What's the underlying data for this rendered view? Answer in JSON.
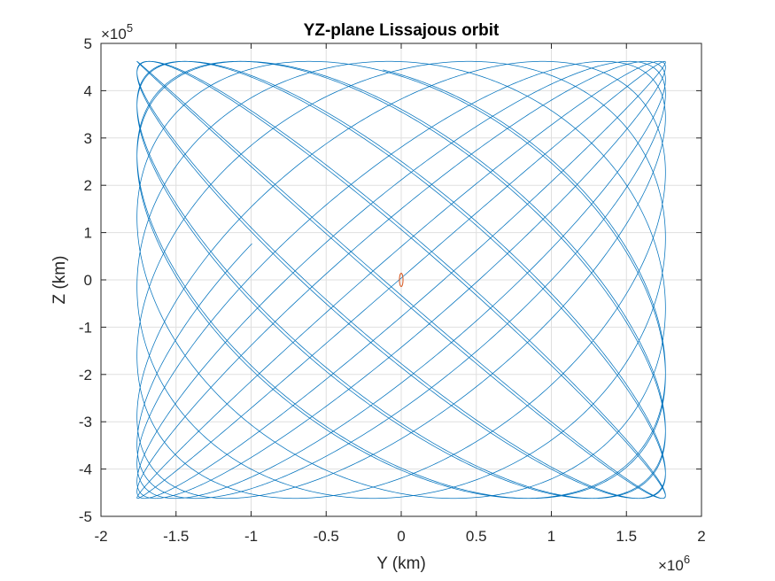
{
  "chart_data": {
    "type": "line",
    "title": "YZ-plane Lissajous orbit",
    "xlabel": "Y (km)",
    "ylabel": "Z (km)",
    "x_exponent": {
      "base": "×10",
      "power": "6"
    },
    "y_exponent": {
      "base": "×10",
      "power": "5"
    },
    "x_scale": 1000000,
    "y_scale": 100000,
    "xlim": [
      -2,
      2
    ],
    "ylim": [
      -5,
      5
    ],
    "xticks": [
      -2,
      -1.5,
      -1,
      -0.5,
      0,
      0.5,
      1,
      1.5,
      2
    ],
    "yticks": [
      -5,
      -4,
      -3,
      -2,
      -1,
      0,
      1,
      2,
      3,
      4,
      5
    ],
    "xtick_labels": [
      "-2",
      "-1.5",
      "-1",
      "-0.5",
      "0",
      "0.5",
      "1",
      "1.5",
      "2"
    ],
    "ytick_labels": [
      "-5",
      "-4",
      "-3",
      "-2",
      "-1",
      "0",
      "1",
      "2",
      "3",
      "4",
      "5"
    ],
    "grid": true,
    "series": [
      {
        "kind": "lissajous",
        "color": "#0072BD",
        "amplitude_y": 1.76,
        "amplitude_z": 4.62,
        "angular_rate_y": 1.0,
        "angular_rate_z": 1.0513,
        "phase_y": -1.64,
        "phase_z": 0.28,
        "t_end": 100
      },
      {
        "kind": "ellipse",
        "color": "#D95319",
        "center": [
          0,
          0
        ],
        "radius_y": 0.012,
        "radius_z": 0.14
      }
    ],
    "colors": {
      "axes": "#262626",
      "grid": "#dfdfdf",
      "background": "#ffffff"
    }
  }
}
